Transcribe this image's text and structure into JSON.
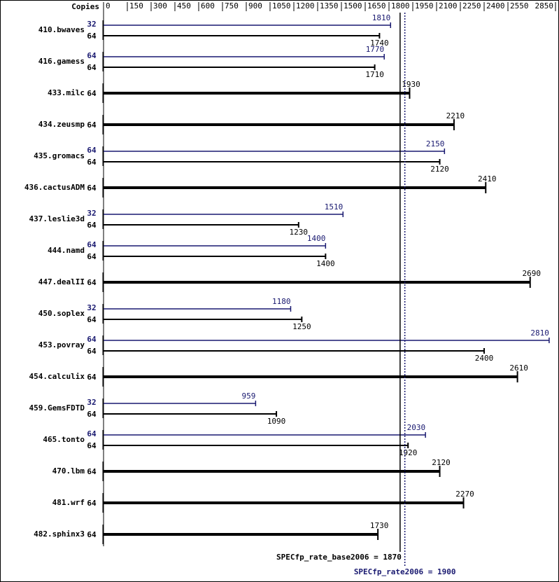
{
  "chart_data": {
    "type": "spec-rate-bar",
    "x_label": "Copies",
    "xlim": [
      0,
      2850
    ],
    "xticks": [
      0,
      150,
      300,
      450,
      600,
      750,
      900,
      1050,
      1200,
      1350,
      1500,
      1650,
      1800,
      1950,
      2100,
      2250,
      2400,
      2550,
      2850
    ],
    "categories": [
      "410.bwaves",
      "416.gamess",
      "433.milc",
      "434.zeusmp",
      "435.gromacs",
      "436.cactusADM",
      "437.leslie3d",
      "444.namd",
      "447.dealII",
      "450.soplex",
      "453.povray",
      "454.calculix",
      "459.GemsFDTD",
      "465.tonto",
      "470.lbm",
      "481.wrf",
      "482.sphinx3"
    ],
    "series": [
      {
        "color": "#191970",
        "copies": [
          32,
          64,
          null,
          null,
          64,
          null,
          32,
          64,
          null,
          32,
          64,
          null,
          32,
          64,
          null,
          null,
          null
        ],
        "values": [
          1810,
          1770,
          null,
          null,
          2150,
          null,
          1510,
          1400,
          null,
          1180,
          2810,
          null,
          959,
          2030,
          null,
          null,
          null
        ]
      },
      {
        "color": "#000000",
        "copies": [
          64,
          64,
          64,
          64,
          64,
          64,
          64,
          64,
          64,
          64,
          64,
          64,
          64,
          64,
          64,
          64,
          64
        ],
        "values": [
          1740,
          1710,
          1930,
          2210,
          2120,
          2410,
          1230,
          1400,
          2690,
          1250,
          2400,
          2610,
          1090,
          1920,
          2120,
          2270,
          1730
        ]
      }
    ],
    "reference_lines": [
      {
        "label": "SPECfp_rate_base2006 = 1870",
        "value": 1870,
        "color": "#000000",
        "style": "solid"
      },
      {
        "label": "SPECfp_rate2006 = 1900",
        "value": 1900,
        "color": "#191970",
        "style": "dotted"
      }
    ]
  }
}
